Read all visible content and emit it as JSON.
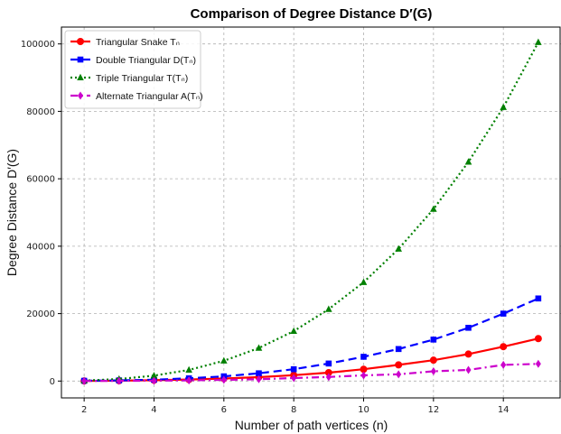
{
  "chart_data": {
    "type": "line",
    "title": "Comparison of Degree Distance D′(G)",
    "xlabel": "Number of path vertices (n)",
    "ylabel": "Degree Distance D′(G)",
    "xlim": [
      1.35,
      15.65
    ],
    "ylim": [
      -5000,
      105000
    ],
    "xticks": [
      2,
      4,
      6,
      8,
      10,
      12,
      14
    ],
    "yticks": [
      0,
      20000,
      40000,
      60000,
      80000,
      100000
    ],
    "grid": true,
    "legend_position": "top-left",
    "x": [
      2,
      3,
      4,
      5,
      6,
      7,
      8,
      9,
      10,
      11,
      12,
      13,
      14,
      15
    ],
    "series": [
      {
        "name": "Triangular Snake Tₙ",
        "color": "#ff0000",
        "line_style": "solid",
        "marker": "circle",
        "values": [
          30,
          100,
          250,
          450,
          750,
          1150,
          1750,
          2500,
          3500,
          4800,
          6200,
          8000,
          10200,
          12600
        ]
      },
      {
        "name": "Double Triangular D(Tₙ)",
        "color": "#0000ff",
        "line_style": "dashed",
        "marker": "square",
        "values": [
          80,
          200,
          400,
          800,
          1400,
          2300,
          3500,
          5200,
          7200,
          9500,
          12300,
          15800,
          20000,
          24500
        ]
      },
      {
        "name": "Triple Triangular T(Tₙ)",
        "color": "#008000",
        "line_style": "dotted",
        "marker": "triangle",
        "values": [
          150,
          600,
          1600,
          3300,
          6000,
          9800,
          14800,
          21300,
          29300,
          39200,
          51000,
          65000,
          81200,
          100500
        ]
      },
      {
        "name": "Alternate Triangular A(Tₙ)",
        "color": "#cc00cc",
        "line_style": "dashdot",
        "marker": "diamond",
        "values": [
          20,
          50,
          100,
          200,
          350,
          550,
          900,
          1200,
          1700,
          2000,
          2900,
          3300,
          4800,
          5100
        ]
      }
    ]
  }
}
